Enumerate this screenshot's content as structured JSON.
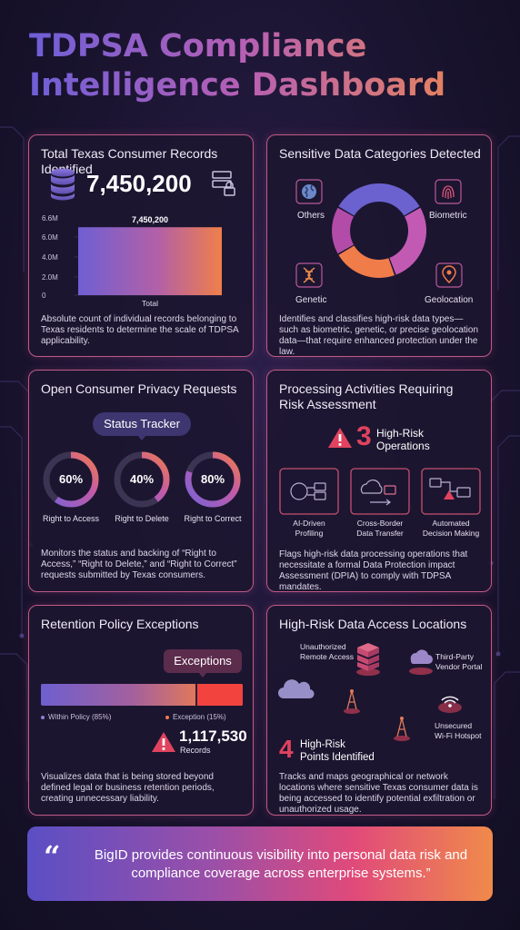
{
  "title_lines": [
    "TDPSA Compliance",
    "Intelligence Dashboard"
  ],
  "records": {
    "title": "Total Texas Consumer Records Identified",
    "count": "7,450,200",
    "y_ticks": [
      "6.6M",
      "6.0M",
      "4.0M",
      "2.0M",
      "0"
    ],
    "bar_label": "7,450,200",
    "x_label": "Total",
    "description": "Absolute count of individual records belonging to Texas residents to determine the scale of TDPSA applicability.",
    "icons": [
      "database-icon",
      "server-lock-icon"
    ]
  },
  "chart_data": {
    "type": "bar",
    "categories": [
      "Total"
    ],
    "values": [
      7450200
    ],
    "ylim": [
      0,
      6600000
    ],
    "ytick_labels": [
      "0",
      "2.0M",
      "4.0M",
      "6.0M",
      "6.6M"
    ]
  },
  "categories": {
    "title": "Sensitive Data Categories Detected",
    "labels": {
      "others": "Others",
      "biometric": "Biometric",
      "genetic": "Genetic",
      "geolocation": "Geolocation"
    },
    "slice_colors": [
      "#6b62d0",
      "#c25ab4",
      "#b34ca8",
      "#f07c4a"
    ],
    "description": "Identifies and classifies high-risk data types—such as biometric, genetic, or precise geolocation data—that require enhanced protection under the law."
  },
  "requests": {
    "title": "Open Consumer Privacy Requests",
    "tracker_label": "Status Tracker",
    "rings": [
      {
        "pct": 60,
        "pct_text": "60%",
        "label": "Right to Access"
      },
      {
        "pct": 40,
        "pct_text": "40%",
        "label": "Right to Delete"
      },
      {
        "pct": 80,
        "pct_text": "80%",
        "label": "Right to Correct"
      }
    ],
    "description": "Monitors the status and backing of “Right to Access,” “Right to Delete,” and “Right to Correct” requests submitted by Texas consumers."
  },
  "processing": {
    "title_lines": [
      "Processing Activities Requiring",
      "Risk Assessment"
    ],
    "count": "3",
    "count_label_lines": [
      "High-Risk",
      "Operations"
    ],
    "items": [
      {
        "label_lines": [
          "AI-Driven",
          "Profiling"
        ]
      },
      {
        "label_lines": [
          "Cross-Border",
          "Data Transfer"
        ]
      },
      {
        "label_lines": [
          "Automated",
          "Decision Making"
        ]
      }
    ],
    "description": "Flags high-risk data processing operations that necessitate a formal Data Protection impact Assessment (DPIA) to comply with TDPSA mandates."
  },
  "retention": {
    "title": "Retention Policy Exceptions",
    "exceptions_label": "Exceptions",
    "within_pct": 85,
    "within_label": "Within Policy (85%)",
    "exception_label": "Exception (15%)",
    "records_count": "1,117,530",
    "records_label": "Records",
    "description": "Visualizes data that is being stored beyond defined legal or business retention periods, creating unnecessary liability."
  },
  "access": {
    "title": "High-Risk Data Access Locations",
    "labels": {
      "remote": [
        "Unauthorized",
        "Remote Access"
      ],
      "vendor": [
        "Third-Party",
        "Vendor Portal"
      ],
      "wifi": [
        "Unsecured",
        "Wi-Fi Hotspot"
      ]
    },
    "count": "4",
    "count_label_lines": [
      "High-Risk",
      "Points Identified"
    ],
    "description": "Tracks and maps geographical or network locations where sensitive Texas consumer data is being accessed to identify potential exfiltration or unauthorized usage."
  },
  "quote": {
    "mark": "“",
    "text": "BigID provides continuous visibility into personal data risk and compliance coverage across enterprise systems.”"
  }
}
